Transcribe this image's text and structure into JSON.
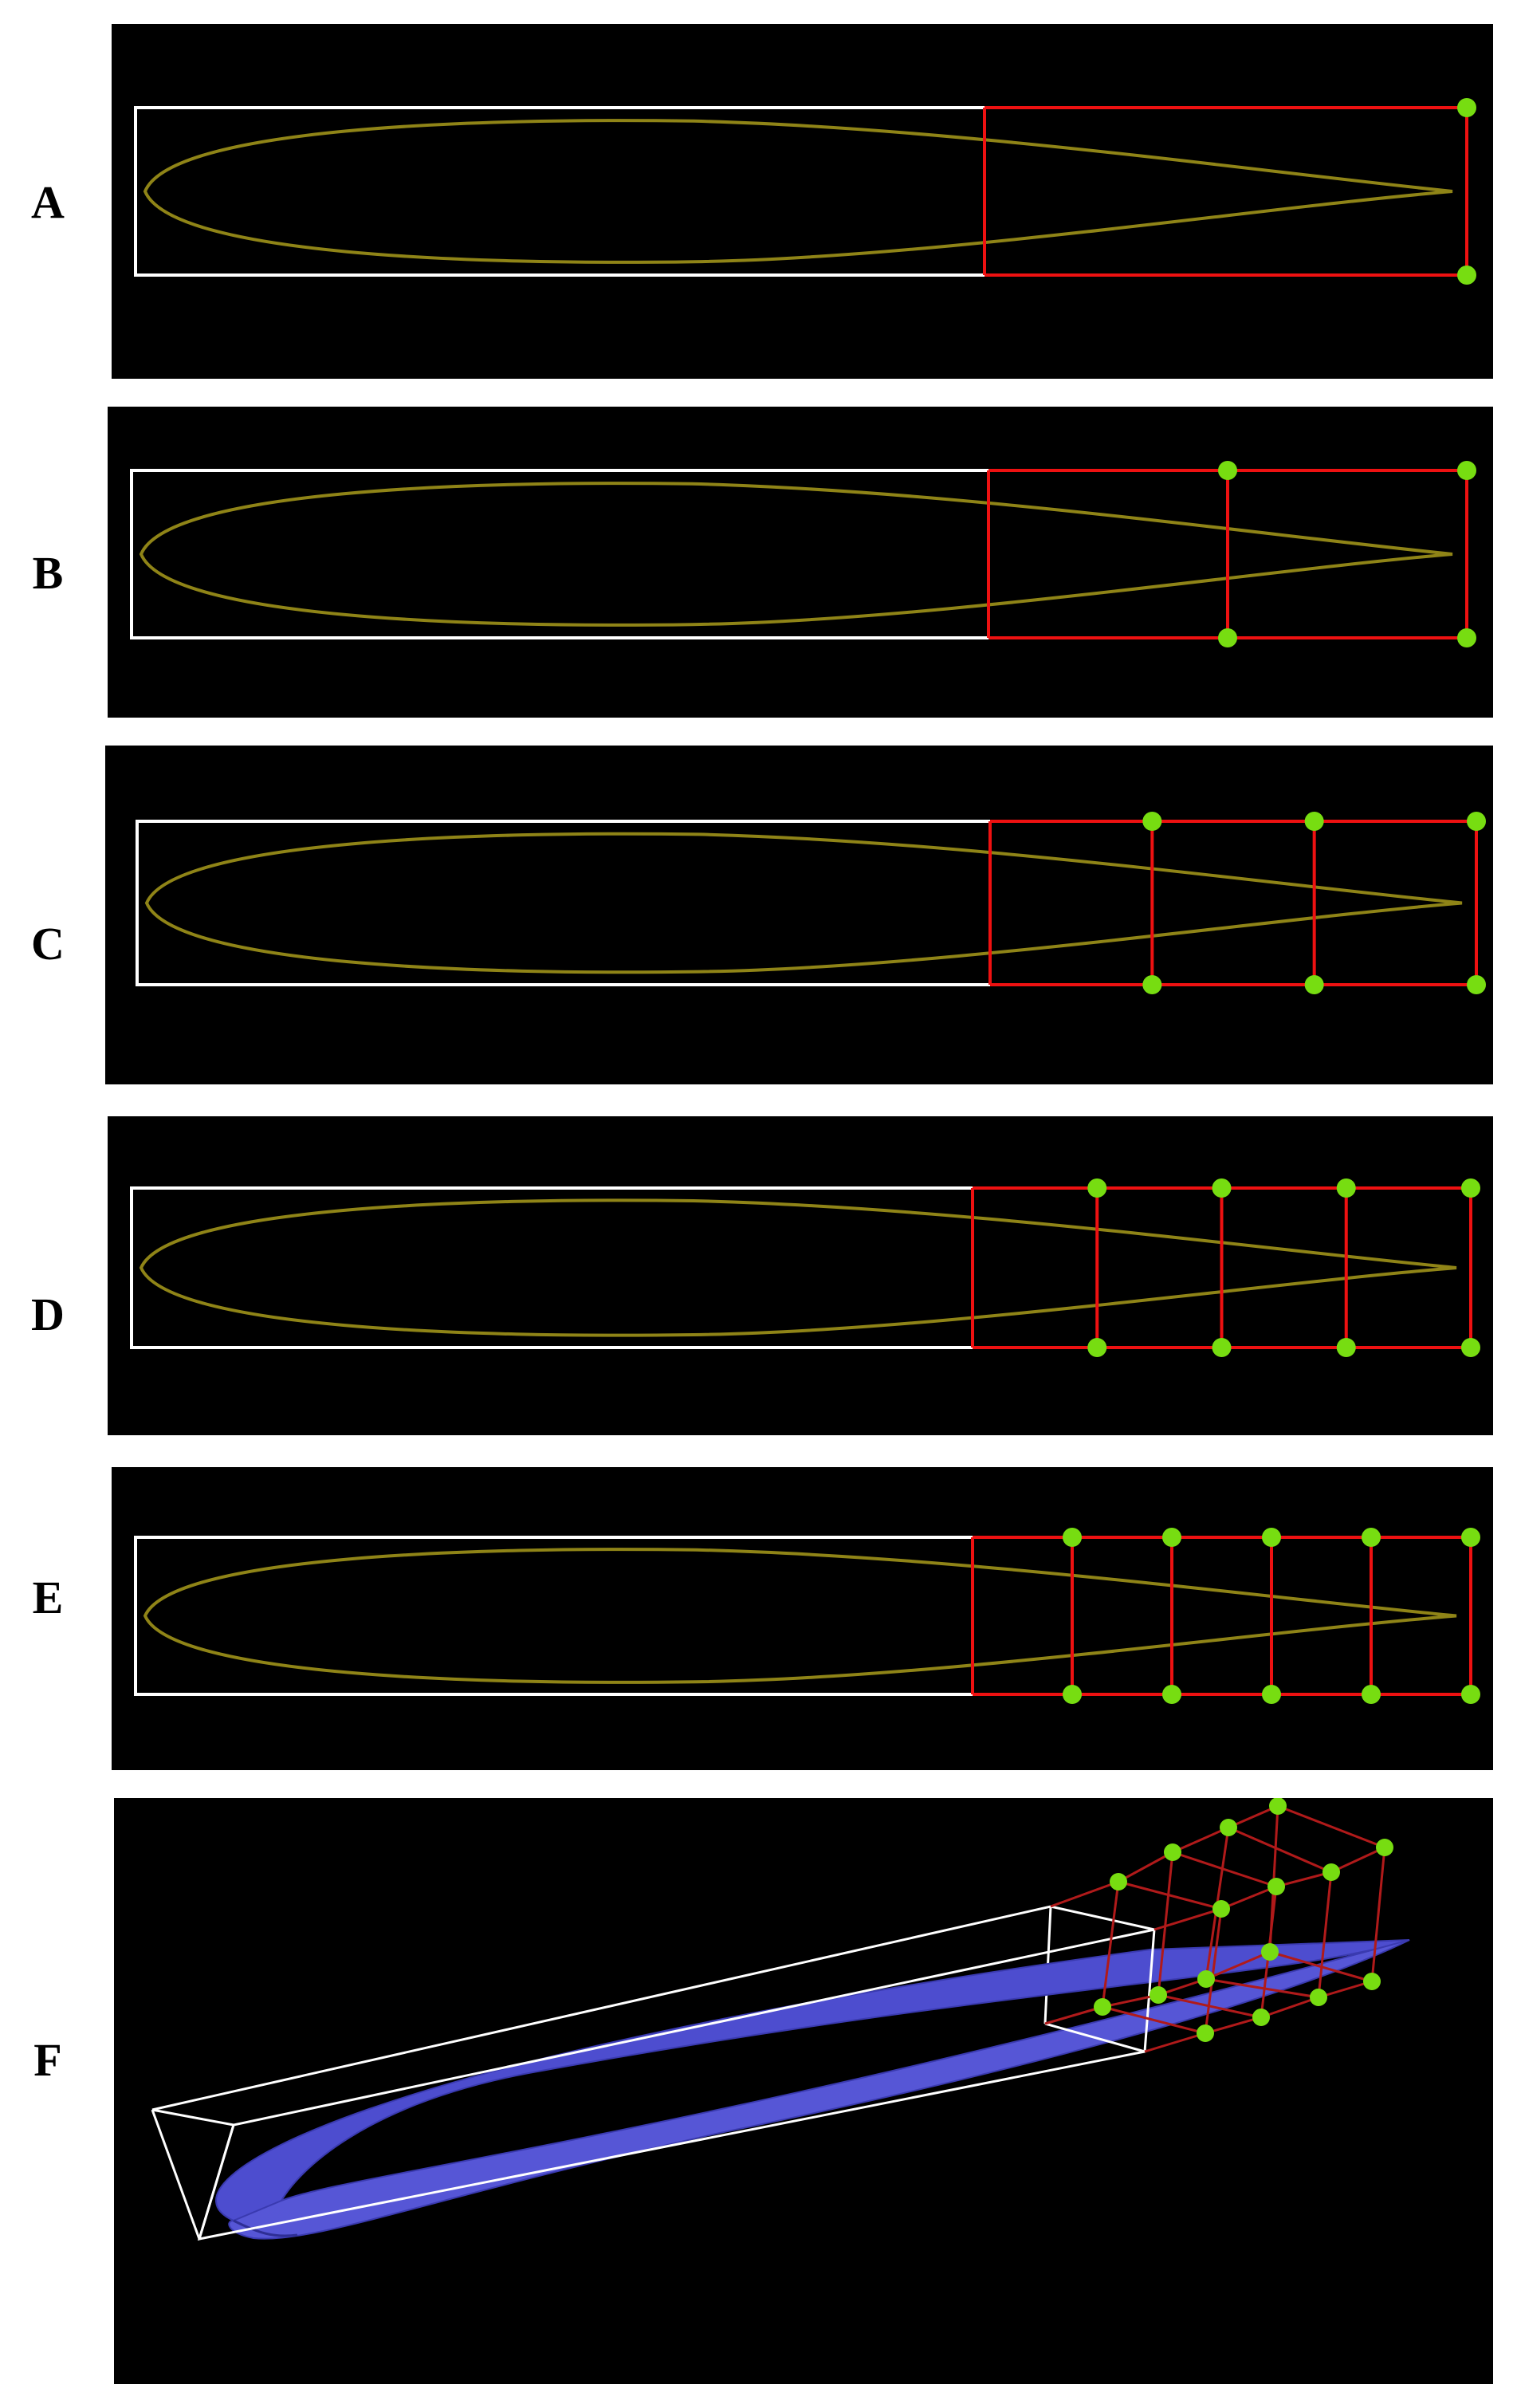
{
  "panels": [
    {
      "label": "A",
      "sections": 1
    },
    {
      "label": "B",
      "sections": 2
    },
    {
      "label": "C",
      "sections": 3
    },
    {
      "label": "D",
      "sections": 4
    },
    {
      "label": "E",
      "sections": 5
    }
  ],
  "panel_3d": {
    "label": "F",
    "shape": "wing-3d"
  },
  "colors": {
    "background": "#000000",
    "airfoil": "#8f8417",
    "box": "#ffffff",
    "lattice": "#ee1111",
    "control_point": "#77dd11",
    "wing_3d": "#4d4dcf",
    "lattice_3d": "#b01a1a"
  }
}
